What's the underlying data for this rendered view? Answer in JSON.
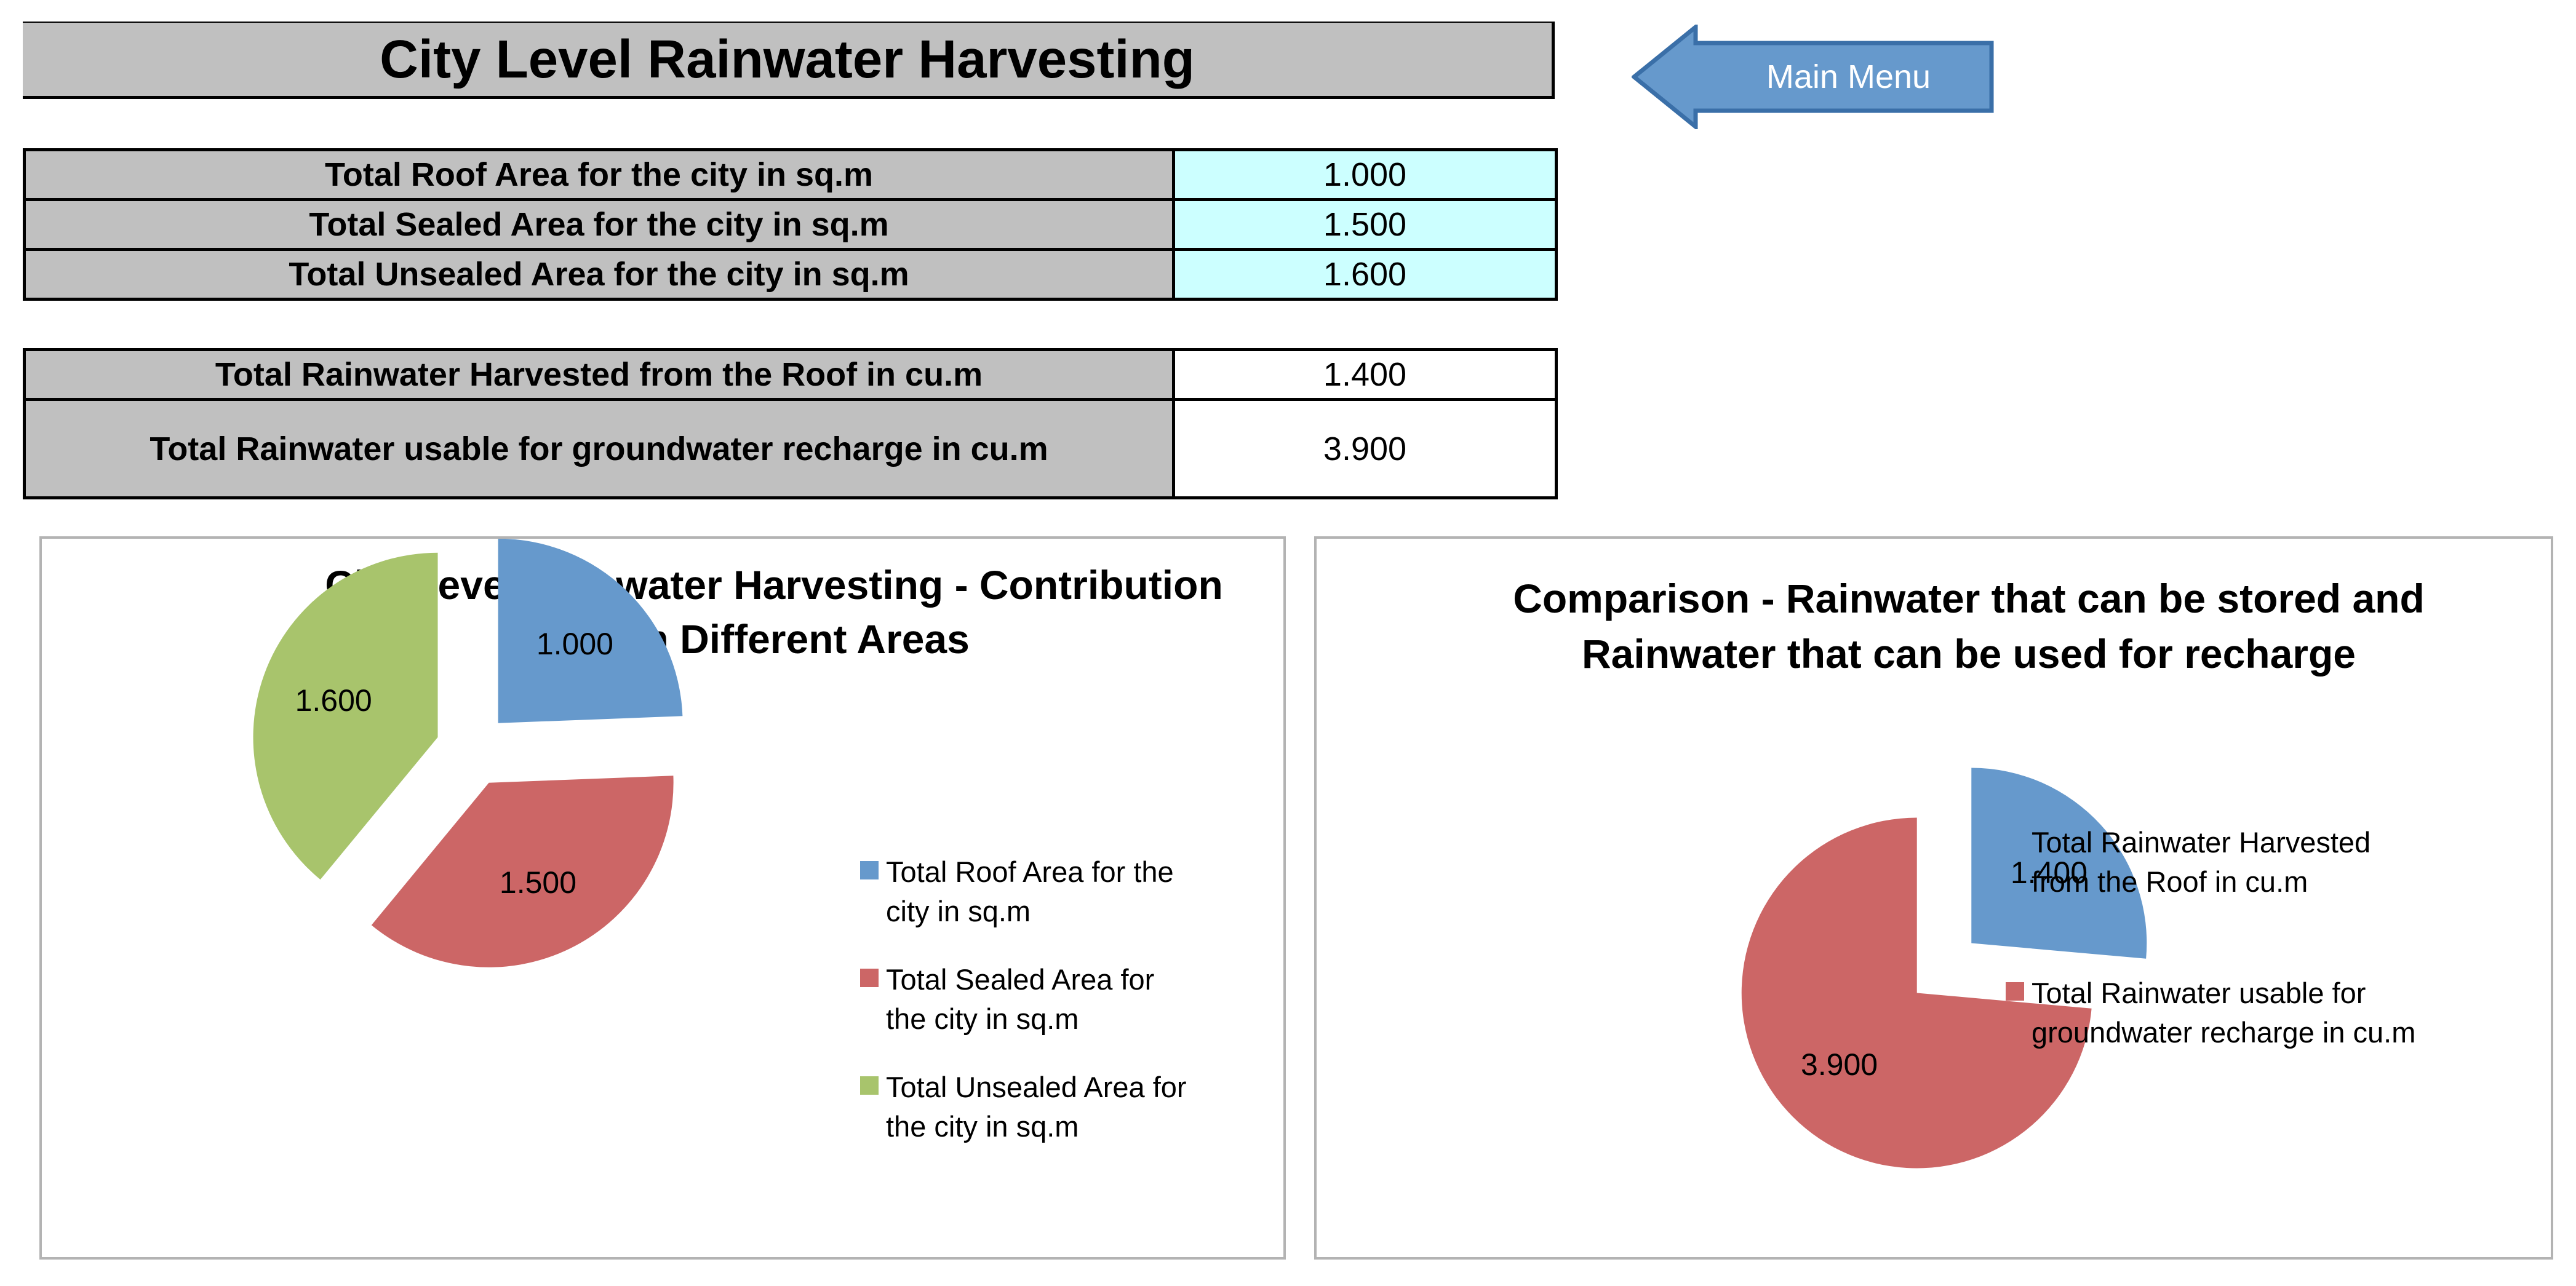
{
  "page": {
    "title": "City Level Rainwater Harvesting"
  },
  "nav": {
    "main_menu_label": "Main Menu",
    "main_menu_icon": "left-arrow-icon",
    "color": "#6699cc"
  },
  "inputs": {
    "rows": [
      {
        "label": "Total Roof Area for the city in sq.m",
        "value": "1.000"
      },
      {
        "label": "Total Sealed Area for the city in sq.m",
        "value": "1.500"
      },
      {
        "label": "Total Unsealed Area for the city in sq.m",
        "value": "1.600"
      }
    ],
    "cell_color": "#ccffff"
  },
  "outputs": {
    "rows": [
      {
        "label": "Total Rainwater Harvested from the Roof in cu.m",
        "value": "1.400"
      },
      {
        "label": "Total Rainwater usable for groundwater recharge in cu.m",
        "value": "3.900"
      }
    ]
  },
  "chart_data": [
    {
      "type": "pie",
      "title": "City Level Rainwater Harvesting - Contribution from Different Areas",
      "title_lines": [
        "City Level Rainwater Harvesting - Contribution",
        "from Different Areas"
      ],
      "categories": [
        "Total Roof Area for the city in sq.m",
        "Total Sealed Area for the city in sq.m",
        "Total Unsealed Area for the city in sq.m"
      ],
      "legend_lines": [
        [
          "Total Roof Area for the",
          "city in sq.m"
        ],
        [
          "Total Sealed Area for",
          "the city in sq.m"
        ],
        [
          "Total Unsealed Area for",
          "the city in sq.m"
        ]
      ],
      "values": [
        1.0,
        1.5,
        1.6
      ],
      "data_labels": [
        "1.000",
        "1.500",
        "1.600"
      ],
      "colors": [
        "#6699cc",
        "#cc6666",
        "#a8c46c"
      ],
      "exploded": true,
      "legend_position": "right"
    },
    {
      "type": "pie",
      "title": "Comparison - Rainwater that can be stored and Rainwater that can be used for recharge",
      "title_lines": [
        "Comparison - Rainwater that can be stored and",
        "Rainwater that can be used for recharge"
      ],
      "categories": [
        "Total Rainwater Harvested from the Roof in cu.m",
        "Total Rainwater usable for groundwater recharge in cu.m"
      ],
      "legend_lines": [
        [
          "Total Rainwater Harvested",
          "from the Roof in cu.m"
        ],
        [
          "Total Rainwater usable for",
          "groundwater recharge in cu.m"
        ]
      ],
      "values": [
        1.4,
        3.9
      ],
      "data_labels": [
        "1.400",
        "3.900"
      ],
      "colors": [
        "#6699cc",
        "#cc6666"
      ],
      "exploded": true,
      "legend_position": "right"
    }
  ]
}
